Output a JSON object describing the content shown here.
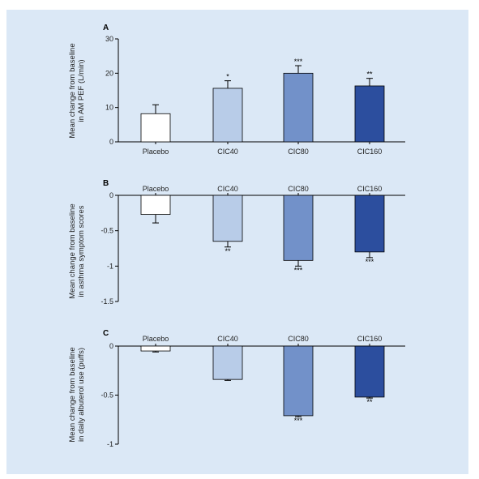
{
  "chart_data": [
    {
      "type": "bar",
      "panel": "A",
      "categories": [
        "Placebo",
        "CIC40",
        "CIC80",
        "CIC160"
      ],
      "values": [
        8.2,
        15.6,
        20.0,
        16.3
      ],
      "errors": [
        2.6,
        2.2,
        2.2,
        2.2
      ],
      "significance": [
        "",
        "*",
        "***",
        "**"
      ],
      "ylabel_lines": [
        "Mean change from baseline",
        "in AM PEF (L/min)"
      ],
      "ylim": [
        0,
        30
      ],
      "yticks": [
        0,
        10,
        20,
        30
      ],
      "category_labels_position": "bottom",
      "colors": [
        "#ffffff",
        "#b8cce8",
        "#7291c9",
        "#2c4e9e"
      ]
    },
    {
      "type": "bar",
      "panel": "B",
      "categories": [
        "Placebo",
        "CIC40",
        "CIC80",
        "CIC160"
      ],
      "values": [
        -0.27,
        -0.65,
        -0.92,
        -0.8
      ],
      "errors": [
        0.12,
        0.08,
        0.08,
        0.08
      ],
      "significance": [
        "",
        "**",
        "***",
        "***"
      ],
      "ylabel_lines": [
        "Mean change from baseline",
        "in asthma symptom scores"
      ],
      "ylim": [
        -1.5,
        0
      ],
      "yticks": [
        0,
        -0.5,
        -1,
        -1.5
      ],
      "category_labels_position": "top",
      "colors": [
        "#ffffff",
        "#b8cce8",
        "#7291c9",
        "#2c4e9e"
      ]
    },
    {
      "type": "bar",
      "panel": "C",
      "categories": [
        "Placebo",
        "CIC40",
        "CIC80",
        "CIC160"
      ],
      "values": [
        -0.05,
        -0.34,
        -0.71,
        -0.52
      ],
      "errors": [
        0.01,
        0.01,
        0.01,
        0.01
      ],
      "significance": [
        "",
        "",
        "***",
        "**"
      ],
      "ylabel_lines": [
        "Mean change from baseline",
        "in daily albuterol use (puffs)"
      ],
      "ylim": [
        -1,
        0
      ],
      "yticks": [
        0,
        -0.5,
        -1
      ],
      "category_labels_position": "top",
      "colors": [
        "#ffffff",
        "#b8cce8",
        "#7291c9",
        "#2c4e9e"
      ]
    }
  ],
  "tick_labels": {
    "A": [
      "0",
      "10",
      "20",
      "30"
    ],
    "B": [
      "0",
      "-0.5",
      "-1",
      "-1.5"
    ],
    "C": [
      "0",
      "-0.5",
      "-1"
    ]
  }
}
